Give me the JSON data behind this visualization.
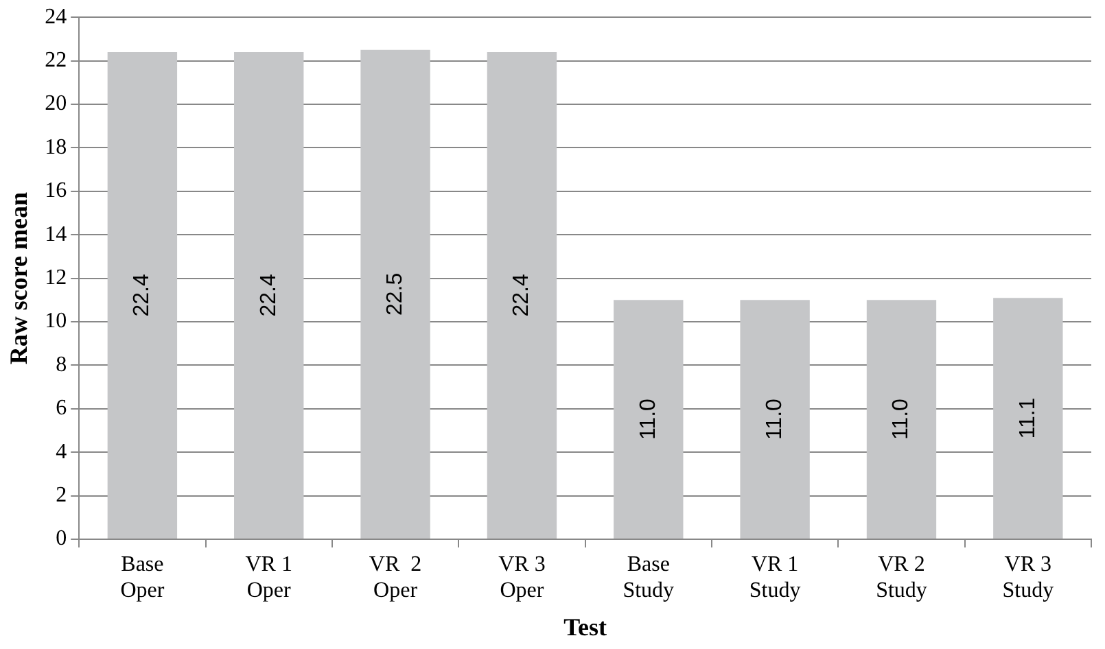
{
  "chart_data": {
    "type": "bar",
    "xlabel": "Test",
    "ylabel": "Raw score mean",
    "categories": [
      "Base\nOper",
      "VR 1\nOper",
      "VR  2\nOper",
      "VR 3\nOper",
      "Base\nStudy",
      "VR 1\nStudy",
      "VR 2\nStudy",
      "VR 3\nStudy"
    ],
    "values": [
      22.4,
      22.4,
      22.5,
      22.4,
      11.0,
      11.0,
      11.0,
      11.1
    ],
    "value_labels": [
      "22.4",
      "22.4",
      "22.5",
      "22.4",
      "11.0",
      "11.0",
      "11.0",
      "11.1"
    ],
    "color": "#c5c6c8",
    "ylim": [
      0,
      24
    ],
    "yticks": [
      0,
      2,
      4,
      6,
      8,
      10,
      12,
      14,
      16,
      18,
      20,
      22,
      24
    ],
    "grid": "y",
    "legend": false
  }
}
